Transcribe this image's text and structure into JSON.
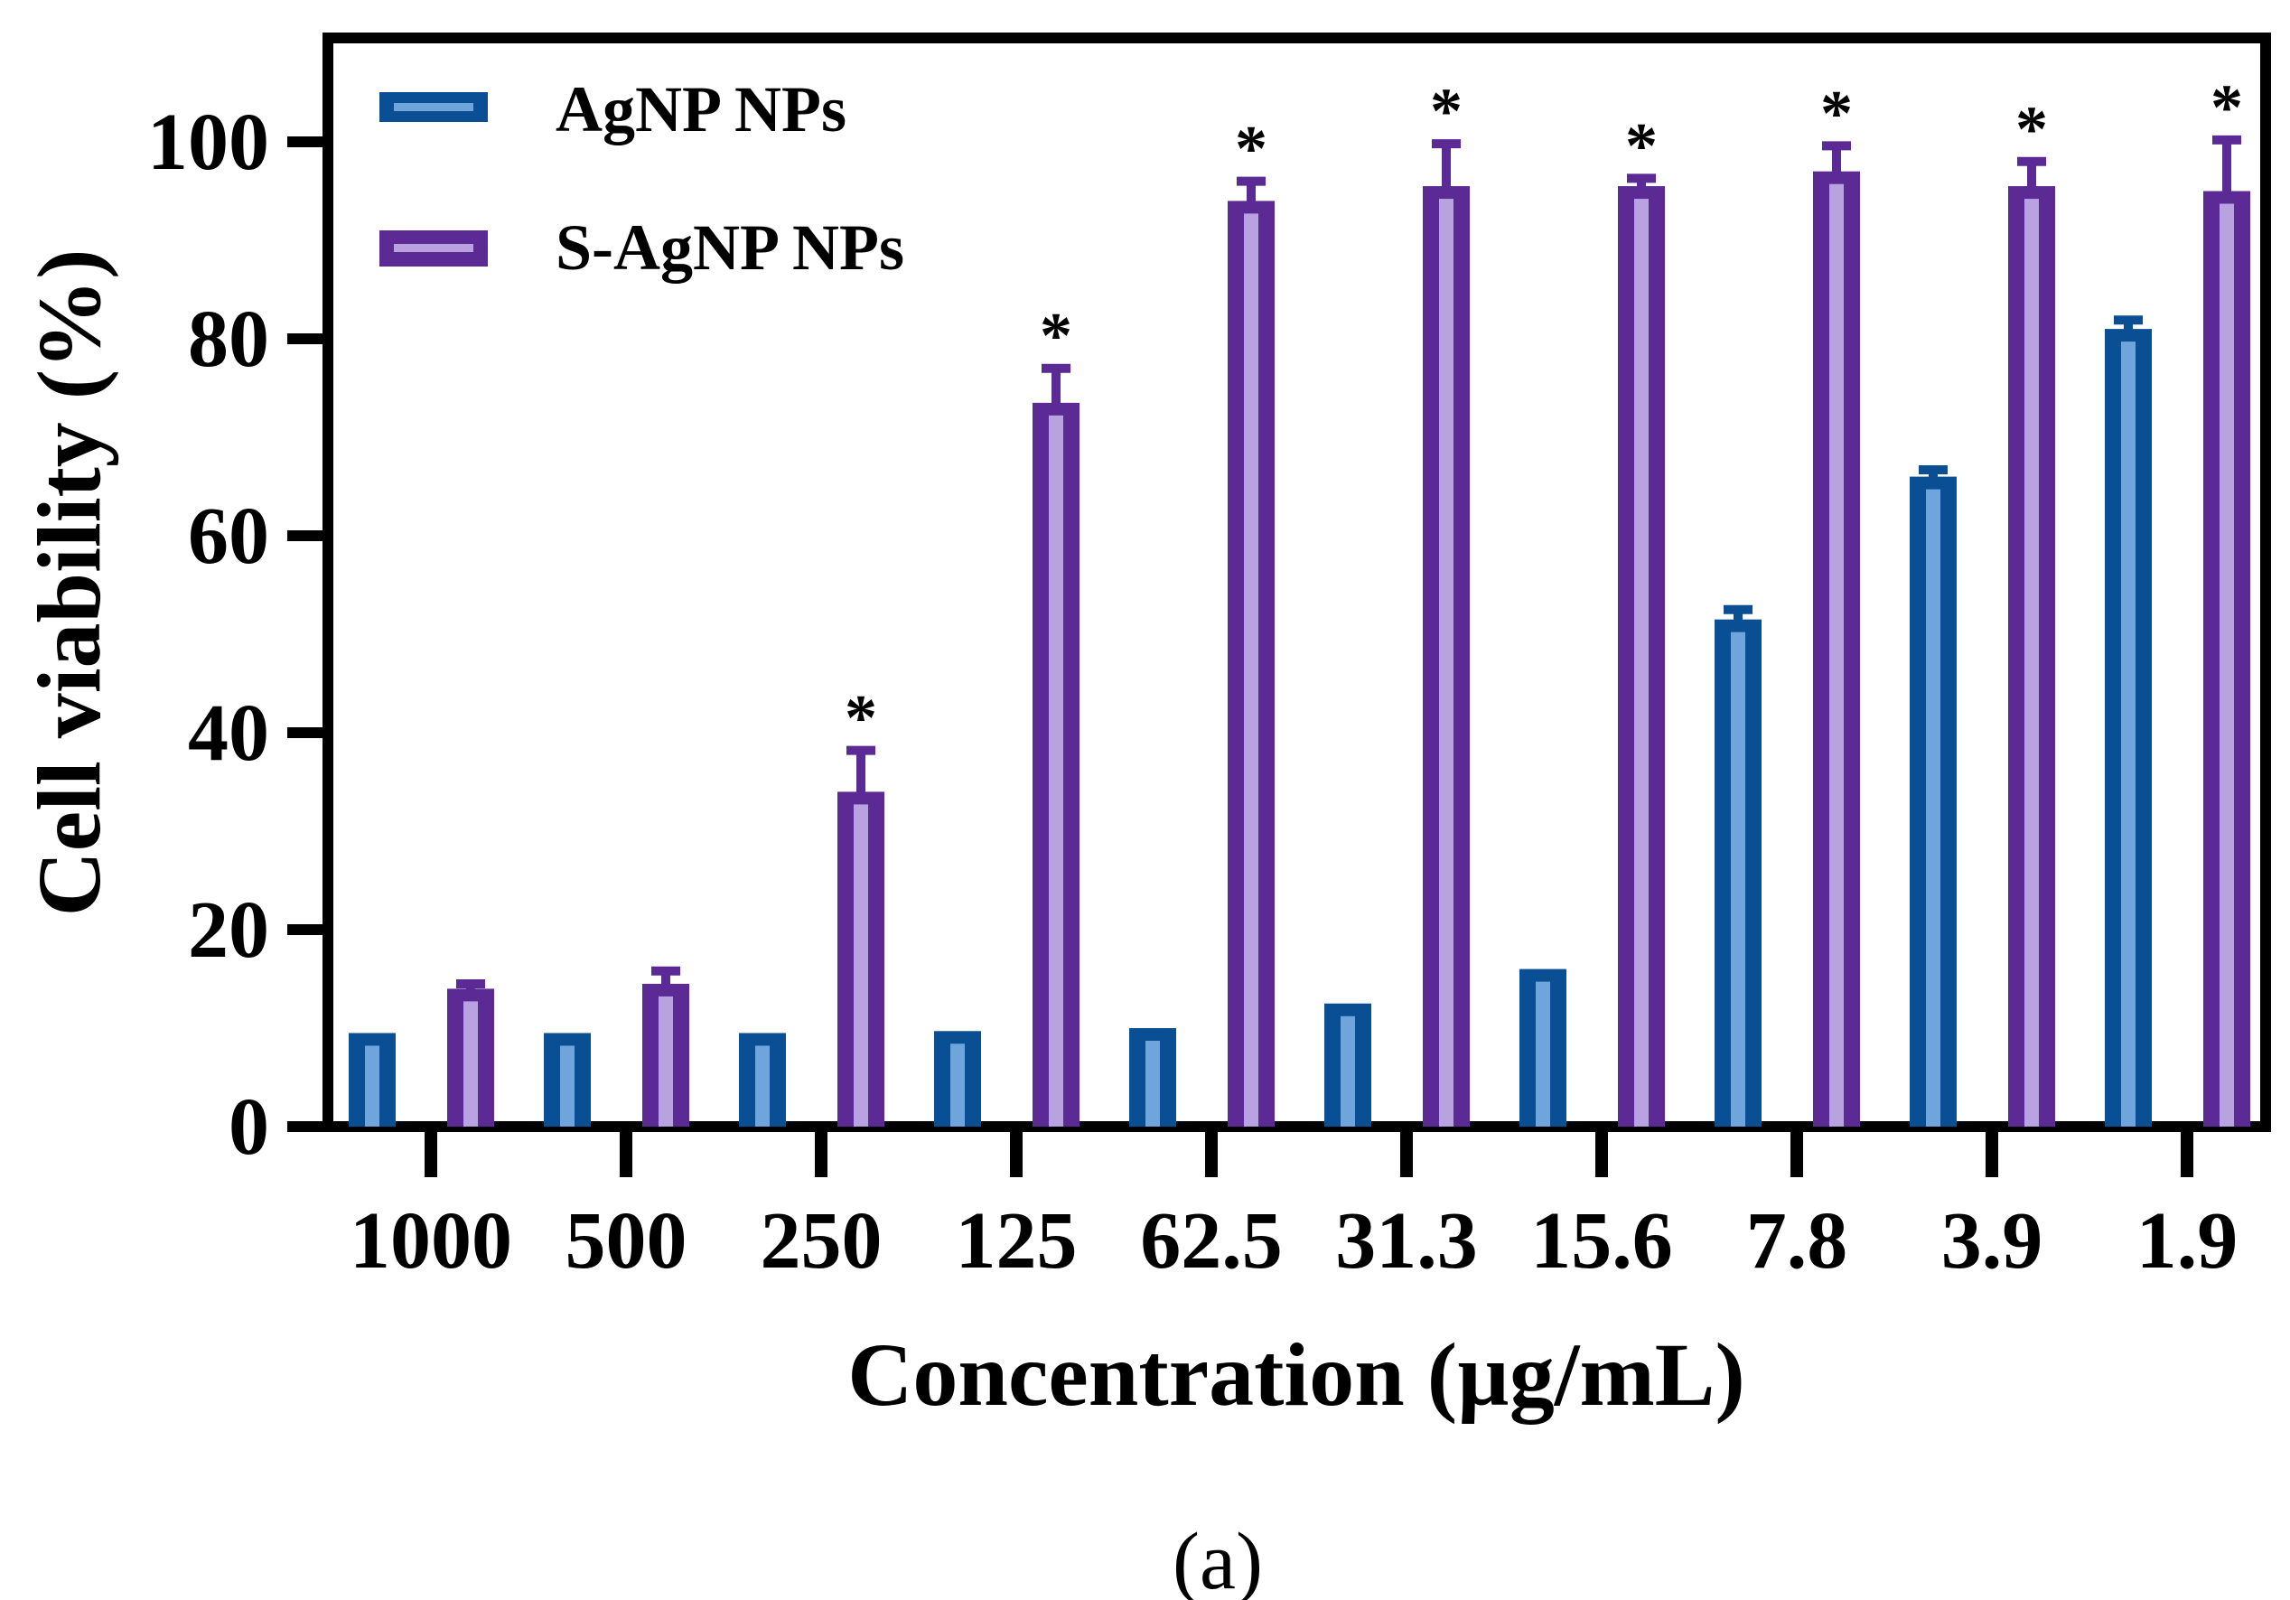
{
  "chart_data": {
    "type": "bar",
    "title": "",
    "xlabel": "Concentration (µg/mL)",
    "ylabel": "Cell viability (%)",
    "ylim": [
      0,
      110
    ],
    "yticks": [
      "0",
      "20",
      "40",
      "60",
      "80",
      "100"
    ],
    "yticks_values": [
      0,
      20,
      40,
      60,
      80,
      100
    ],
    "categories": [
      "1000",
      "500",
      "250",
      "125",
      "62.5",
      "31.3",
      "15.6",
      "7.8",
      "3.9",
      "1.9"
    ],
    "series": [
      {
        "name": "AgNP NPs",
        "color": "#0a4f94",
        "inner_color": "#6ea6dc",
        "values": [
          9.5,
          9.5,
          9.5,
          9.7,
          10,
          12.5,
          16,
          51.5,
          66,
          81
        ],
        "errors": [
          0,
          0,
          0,
          0,
          0,
          0,
          0,
          1,
          0.7,
          0.9
        ]
      },
      {
        "name": "S-AgNP NPs",
        "color": "#5b2a94",
        "inner_color": "#b9a2e0",
        "values": [
          14,
          14.5,
          34,
          73.5,
          94,
          95.5,
          95.5,
          97,
          95.5,
          95
        ],
        "errors": [
          0.5,
          1.3,
          4.2,
          3.5,
          2,
          4.3,
          0.8,
          2.6,
          2.5,
          5.2
        ],
        "significant": [
          false,
          false,
          true,
          true,
          true,
          true,
          true,
          true,
          true,
          true
        ]
      }
    ],
    "significance_marker": "*",
    "legend_position": "top-left",
    "panel_label": "(a)"
  }
}
